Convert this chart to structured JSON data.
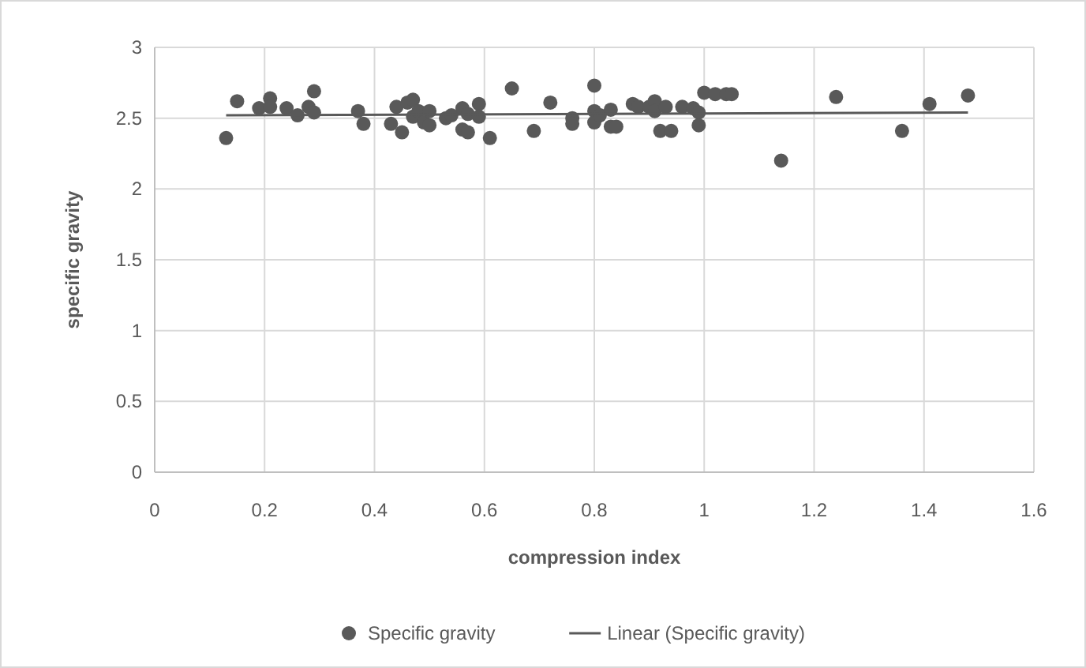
{
  "chart_data": {
    "type": "scatter",
    "xlabel": "compression index",
    "ylabel": "specific gravity",
    "xlim": [
      0,
      1.6
    ],
    "xticks": [
      0,
      0.2,
      0.4,
      0.6,
      0.8,
      1,
      1.2,
      1.4,
      1.6
    ],
    "ylim": [
      0,
      3
    ],
    "yticks": [
      0,
      0.5,
      1,
      1.5,
      2,
      2.5,
      3
    ],
    "grid": true,
    "legend": "bottom",
    "series": [
      {
        "name": "Specific gravity",
        "marker": "circle",
        "color": "#595959",
        "x": [
          0.13,
          0.15,
          0.19,
          0.21,
          0.21,
          0.24,
          0.26,
          0.28,
          0.29,
          0.29,
          0.37,
          0.38,
          0.43,
          0.44,
          0.45,
          0.46,
          0.47,
          0.47,
          0.48,
          0.49,
          0.5,
          0.5,
          0.53,
          0.54,
          0.56,
          0.56,
          0.57,
          0.57,
          0.59,
          0.59,
          0.61,
          0.65,
          0.69,
          0.72,
          0.76,
          0.76,
          0.8,
          0.8,
          0.8,
          0.81,
          0.83,
          0.83,
          0.84,
          0.87,
          0.88,
          0.9,
          0.91,
          0.91,
          0.92,
          0.93,
          0.94,
          0.96,
          0.98,
          0.99,
          0.99,
          1,
          1.02,
          1.04,
          1.05,
          1.14,
          1.24,
          1.36,
          1.41,
          1.48
        ],
        "values": [
          2.36,
          2.62,
          2.57,
          2.64,
          2.58,
          2.57,
          2.52,
          2.58,
          2.69,
          2.54,
          2.55,
          2.46,
          2.46,
          2.58,
          2.4,
          2.61,
          2.63,
          2.51,
          2.55,
          2.47,
          2.55,
          2.45,
          2.5,
          2.52,
          2.57,
          2.42,
          2.4,
          2.53,
          2.6,
          2.51,
          2.36,
          2.71,
          2.41,
          2.61,
          2.5,
          2.46,
          2.73,
          2.55,
          2.47,
          2.52,
          2.56,
          2.44,
          2.44,
          2.6,
          2.58,
          2.58,
          2.62,
          2.55,
          2.41,
          2.58,
          2.41,
          2.58,
          2.57,
          2.54,
          2.45,
          2.68,
          2.67,
          2.67,
          2.67,
          2.2,
          2.65,
          2.41,
          2.6,
          2.66
        ]
      },
      {
        "name": "Linear (Specific gravity)",
        "type": "line",
        "color": "#595959",
        "line_style": "solid",
        "marker": "none",
        "x": [
          0.13,
          1.48
        ],
        "values": [
          2.52,
          2.54
        ]
      }
    ]
  }
}
